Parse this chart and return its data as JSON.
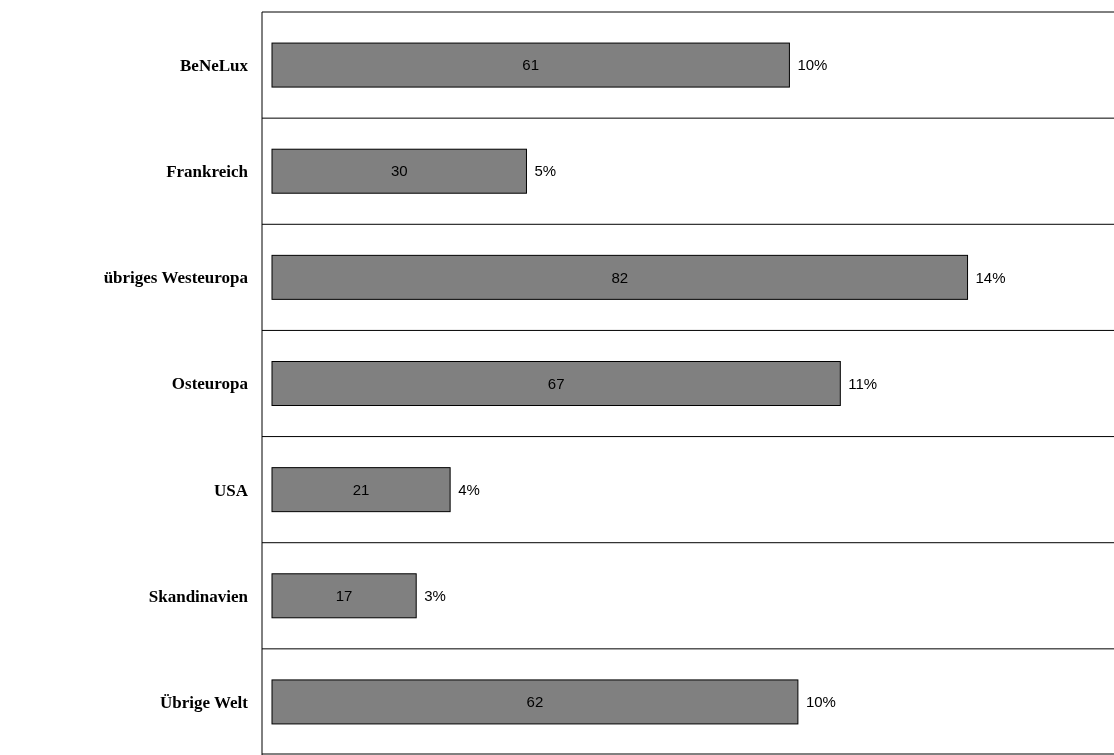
{
  "chart_data": {
    "type": "bar",
    "orientation": "horizontal",
    "categories": [
      "BeNeLux",
      "Frankreich",
      "übriges Westeuropa",
      "Osteuropa",
      "USA",
      "Skandinavien",
      "Übrige Welt"
    ],
    "values": [
      61,
      30,
      82,
      67,
      21,
      17,
      62
    ],
    "color": "#808080",
    "data_labels": true,
    "grid": "y",
    "annotations": [
      {
        "text": "10%",
        "x": 61,
        "y": "BeNeLux"
      },
      {
        "text": "5%",
        "x": 30,
        "y": "Frankreich"
      },
      {
        "text": "14%",
        "x": 82,
        "y": "übriges Westeuropa"
      },
      {
        "text": "11%",
        "x": 67,
        "y": "Osteuropa"
      },
      {
        "text": "4%",
        "x": 21,
        "y": "USA"
      },
      {
        "text": "3%",
        "x": 17,
        "y": "Skandinavien"
      },
      {
        "text": "10%",
        "x": 62,
        "y": "Übrige Welt"
      }
    ]
  }
}
